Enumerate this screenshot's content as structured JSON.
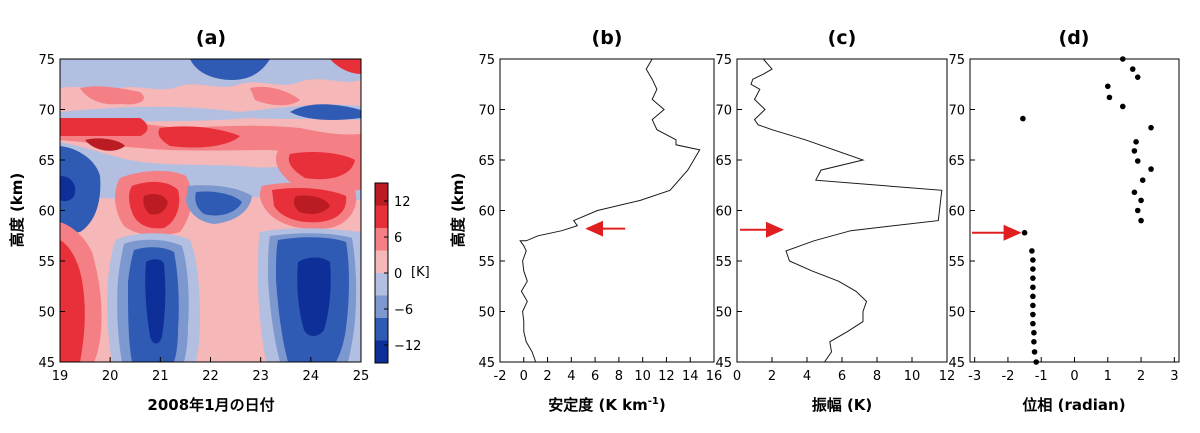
{
  "chart_data": [
    {
      "type": "heatmap",
      "panel": "(a)",
      "xlabel": "2008年1月の日付",
      "ylabel": "高度 (km)",
      "xlim": [
        19,
        25
      ],
      "ylim": [
        45,
        75
      ],
      "xticks": [
        "19",
        "20",
        "21",
        "22",
        "23",
        "24",
        "25"
      ],
      "yticks": [
        "45",
        "50",
        "55",
        "60",
        "65",
        "70",
        "75"
      ],
      "colorbar": {
        "unit": "[K]",
        "ticks": [
          "12",
          "6",
          "0",
          "−6",
          "−12"
        ],
        "tick_values": [
          12,
          6,
          0,
          -6,
          -12
        ],
        "range": [
          -15,
          15
        ],
        "colors_low_to_high": [
          "#0f2f98",
          "#2f5bb5",
          "#7d98cf",
          "#b3bfe0",
          "#f5b7b8",
          "#f47f84",
          "#e8303a",
          "#bb1b23"
        ]
      },
      "field_summary": [
        {
          "x_range": [
            19,
            19.8
          ],
          "y_range": [
            45,
            58
          ],
          "sign": "warm",
          "peak_K": 10
        },
        {
          "x_range": [
            20.3,
            21.7
          ],
          "y_range": [
            45,
            58
          ],
          "sign": "cold",
          "peak_K": -10
        },
        {
          "x_range": [
            20.4,
            21.6
          ],
          "y_range": [
            58,
            63
          ],
          "sign": "warm",
          "peak_K": 13
        },
        {
          "x_range": [
            21.6,
            22.8
          ],
          "y_range": [
            59,
            63
          ],
          "sign": "cold",
          "peak_K": -9
        },
        {
          "x_range": [
            22.9,
            24.9
          ],
          "y_range": [
            58,
            63
          ],
          "sign": "warm",
          "peak_K": 13
        },
        {
          "x_range": [
            23.2,
            24.8
          ],
          "y_range": [
            45,
            57
          ],
          "sign": "cold",
          "peak_K": -11
        },
        {
          "x_range": [
            19,
            20
          ],
          "y_range": [
            59,
            66
          ],
          "sign": "cold",
          "peak_K": -9
        },
        {
          "x_range": [
            19,
            24.5
          ],
          "y_range": [
            65,
            69
          ],
          "sign": "warm",
          "peak_K": 11
        },
        {
          "x_range": [
            19,
            25
          ],
          "y_range": [
            69,
            75
          ],
          "sign": "mixed",
          "peak_K": 8
        }
      ]
    },
    {
      "type": "line",
      "panel": "(b)",
      "xlabel": "安定度 (K km",
      "xlabel_sup": "-1",
      "xlabel_close": ")",
      "ylabel": "高度 (km)",
      "xlim": [
        -2,
        16
      ],
      "ylim": [
        45,
        75
      ],
      "xticks": [
        "-2",
        "0",
        "2",
        "4",
        "6",
        "8",
        "10",
        "12",
        "14",
        "16"
      ],
      "yticks": [
        "45",
        "50",
        "55",
        "60",
        "65",
        "70",
        "75"
      ],
      "x": [
        1.0,
        0.7,
        0.2,
        0.0,
        0.0,
        -0.1,
        0.3,
        -0.2,
        0.3,
        0.0,
        -0.1,
        0.2,
        0.0,
        -0.3,
        0.2,
        1.2,
        3.2,
        4.5,
        4.2,
        6.2,
        9.8,
        12.3,
        13.8,
        14.8,
        12.8,
        12.8,
        11.2,
        10.8,
        11.8,
        10.8,
        11.2,
        10.8,
        10.3,
        10.8
      ],
      "y": [
        45,
        46,
        47,
        48,
        49,
        50,
        51,
        52,
        53,
        54,
        55,
        56,
        56.5,
        57,
        57,
        57.5,
        58,
        58.5,
        59,
        60,
        61,
        62,
        64,
        66,
        66.5,
        67,
        68,
        69,
        70,
        71,
        72,
        73,
        74,
        75
      ],
      "arrow_at": {
        "x": 5,
        "y": 58.2
      }
    },
    {
      "type": "line",
      "panel": "(c)",
      "xlabel": "振幅 (K)",
      "ylabel": "",
      "xlim": [
        0,
        12
      ],
      "ylim": [
        45,
        75
      ],
      "xticks": [
        "0",
        "2",
        "4",
        "6",
        "8",
        "10",
        "12"
      ],
      "yticks": [
        "45",
        "50",
        "55",
        "60",
        "65",
        "70",
        "75"
      ],
      "x": [
        5.0,
        5.4,
        5.3,
        6.3,
        7.2,
        7.2,
        7.4,
        6.8,
        5.8,
        4.3,
        3.0,
        2.8,
        4.4,
        6.5,
        11.5,
        11.7,
        4.5,
        4.8,
        7.2,
        3.9,
        2.0,
        1.2,
        1.0,
        1.6,
        1.0,
        1.3,
        0.8,
        0.9,
        1.5,
        2.0,
        1.5
      ],
      "y": [
        45,
        46,
        47,
        48,
        49,
        50,
        51,
        52,
        53,
        54,
        55,
        56,
        57,
        58,
        59,
        62,
        63,
        64,
        65,
        67,
        68,
        68.5,
        69,
        70,
        71,
        72,
        72.5,
        73,
        73.5,
        74,
        75
      ],
      "arrow_at": {
        "x": 2.8,
        "y": 58.1
      }
    },
    {
      "type": "scatter",
      "panel": "(d)",
      "xlabel": "位相 (radian)",
      "ylabel": "",
      "xlim": [
        -3.14,
        3.14
      ],
      "ylim": [
        45,
        75
      ],
      "xticks": [
        "-3",
        "-2",
        "-1",
        "0",
        "1",
        "2",
        "3"
      ],
      "tick_values": [
        -3,
        -2,
        -1,
        0,
        1,
        2,
        3
      ],
      "yticks": [
        "45",
        "50",
        "55",
        "60",
        "65",
        "70",
        "75"
      ],
      "x": [
        -1.15,
        -1.2,
        -1.22,
        -1.22,
        -1.25,
        -1.25,
        -1.25,
        -1.25,
        -1.25,
        -1.25,
        -1.25,
        -1.25,
        -1.28,
        -1.5,
        2.0,
        1.9,
        2.0,
        1.8,
        2.05,
        2.3,
        1.9,
        1.8,
        1.85,
        2.3,
        -1.55,
        1.45,
        1.05,
        1.0,
        1.9,
        1.75,
        1.45
      ],
      "y": [
        45,
        46,
        47,
        47.9,
        48.8,
        49.7,
        50.6,
        51.5,
        52.4,
        53.3,
        54.2,
        55.1,
        56.0,
        57.8,
        59,
        60,
        61,
        61.8,
        63,
        64.1,
        64.9,
        65.9,
        66.8,
        68.2,
        69.1,
        70.3,
        71.2,
        72.3,
        73.2,
        74,
        75
      ]
    }
  ],
  "labels": {
    "a": "(a)",
    "b": "(b)",
    "c": "(c)",
    "d": "(d)"
  },
  "colors": {
    "arrow": "#e02020",
    "line": "#1a1a1a",
    "frame": "#000000"
  }
}
